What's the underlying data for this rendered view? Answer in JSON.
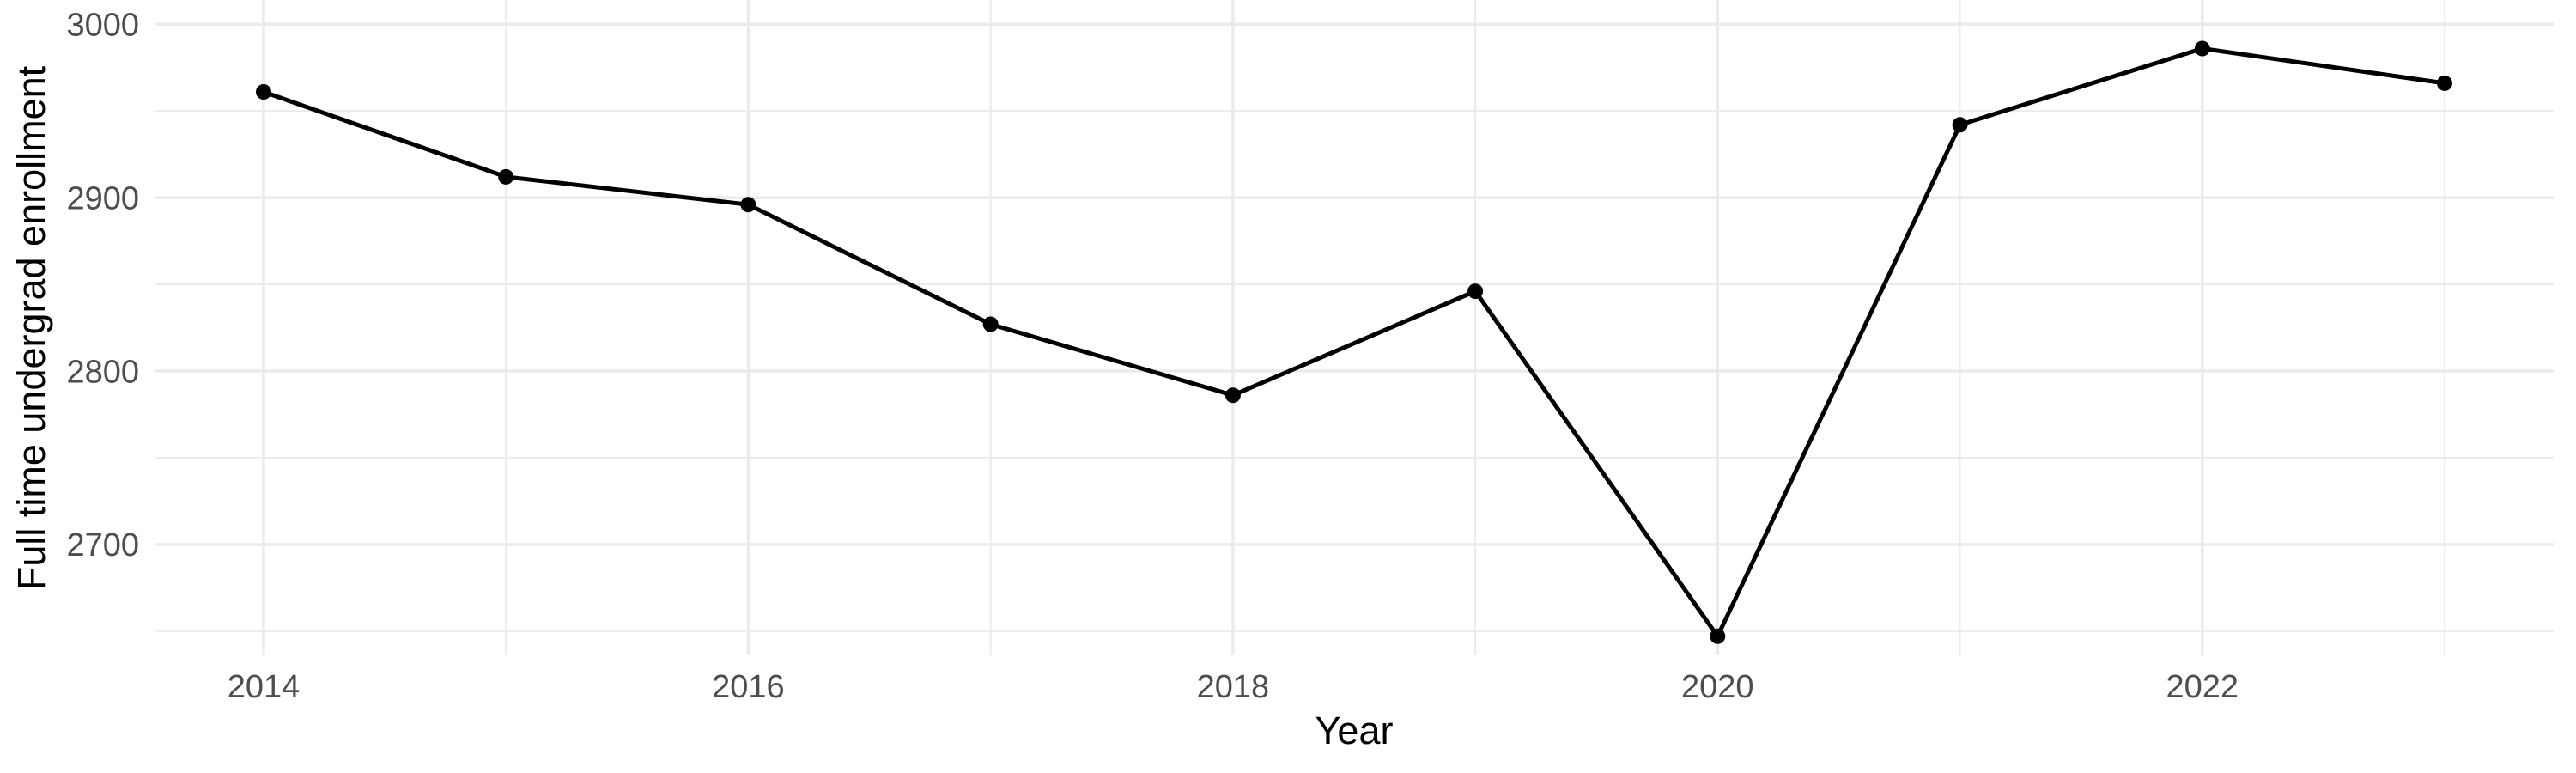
{
  "chart_data": {
    "type": "line",
    "title": "",
    "xlabel": "Year",
    "ylabel": "Full time undergrad enrollment",
    "series_name": "Full time undergrad enrollment",
    "x": [
      2014,
      2015,
      2016,
      2017,
      2018,
      2019,
      2020,
      2021,
      2022,
      2023
    ],
    "values": [
      2961,
      2912,
      2896,
      2827,
      2786,
      2846,
      2647,
      2942,
      2986,
      2966
    ],
    "xlim": [
      2013.55,
      2023.45
    ],
    "ylim": [
      2636,
      3014
    ],
    "x_major_ticks": [
      2014,
      2016,
      2018,
      2020,
      2022
    ],
    "x_major_tick_labels": [
      "2014",
      "2016",
      "2018",
      "2020",
      "2022"
    ],
    "x_minor_ticks": [
      2015,
      2017,
      2019,
      2021,
      2023
    ],
    "y_major_ticks": [
      2700,
      2800,
      2900,
      3000
    ],
    "y_major_tick_labels": [
      "2700",
      "2800",
      "2900",
      "3000"
    ],
    "y_minor_ticks": [
      2650,
      2750,
      2850,
      2950
    ],
    "grid": true,
    "legend": "none",
    "marker": "point",
    "colors": {
      "background": "#ffffff",
      "grid": "#ebebeb",
      "series": "#000000",
      "tick_label": "#4d4d4d",
      "axis_title": "#000000"
    }
  }
}
